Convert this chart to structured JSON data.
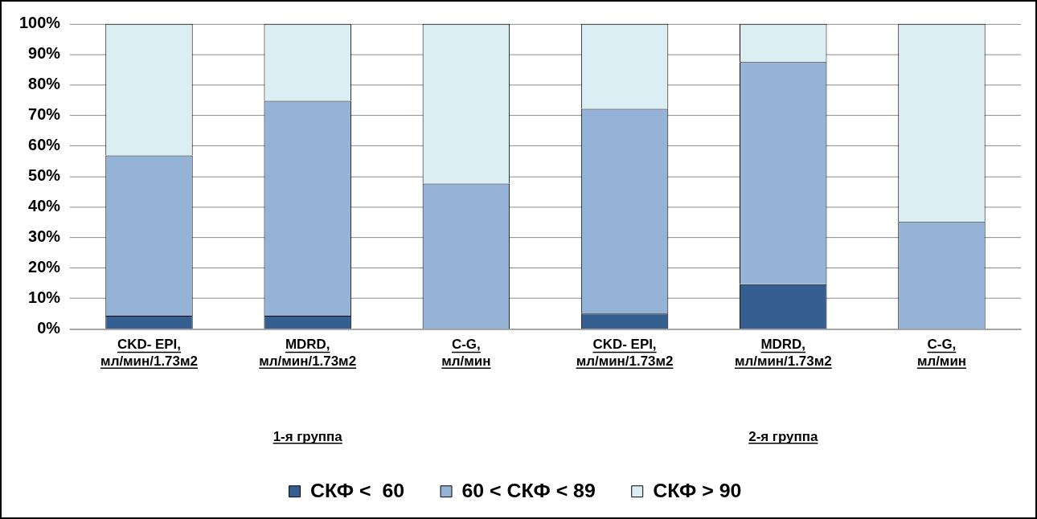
{
  "chart_data": {
    "type": "bar",
    "stacked": true,
    "categories": [
      "CKD- EPI,\nмл/мин/1.73м2",
      "MDRD,\nмл/мин/1.73м2",
      "C-G,\nмл/мин",
      "CKD- EPI,\nмл/мин/1.73м2",
      "MDRD,\nмл/мин/1.73м2",
      "C-G,\nмл/мин"
    ],
    "series": [
      {
        "name": "СКФ <  60",
        "color": "#365f91",
        "values": [
          4.4,
          4.4,
          0,
          5.1,
          14.7,
          0
        ]
      },
      {
        "name": "60 < СКФ < 89",
        "color": "#95b3d7",
        "values": [
          52.5,
          70.4,
          47.7,
          67.1,
          72.8,
          35.1
        ]
      },
      {
        "name": "СКФ > 90",
        "color": "#dbeef4",
        "values": [
          43.1,
          25.2,
          52.3,
          27.8,
          12.5,
          64.9
        ]
      }
    ],
    "ylim": [
      0,
      100
    ],
    "yticks": [
      {
        "value": 0,
        "label": "0%"
      },
      {
        "value": 10,
        "label": "10%"
      },
      {
        "value": 20,
        "label": "20%"
      },
      {
        "value": 30,
        "label": "30%"
      },
      {
        "value": 40,
        "label": "40%"
      },
      {
        "value": 50,
        "label": "50%"
      },
      {
        "value": 60,
        "label": "60%"
      },
      {
        "value": 70,
        "label": "70%"
      },
      {
        "value": 80,
        "label": "80%"
      },
      {
        "value": 90,
        "label": "90%"
      },
      {
        "value": 100,
        "label": "100%"
      }
    ],
    "grid": "y",
    "legend": "bottom",
    "annotations": [
      "1-я группа",
      "2-я группа"
    ]
  }
}
